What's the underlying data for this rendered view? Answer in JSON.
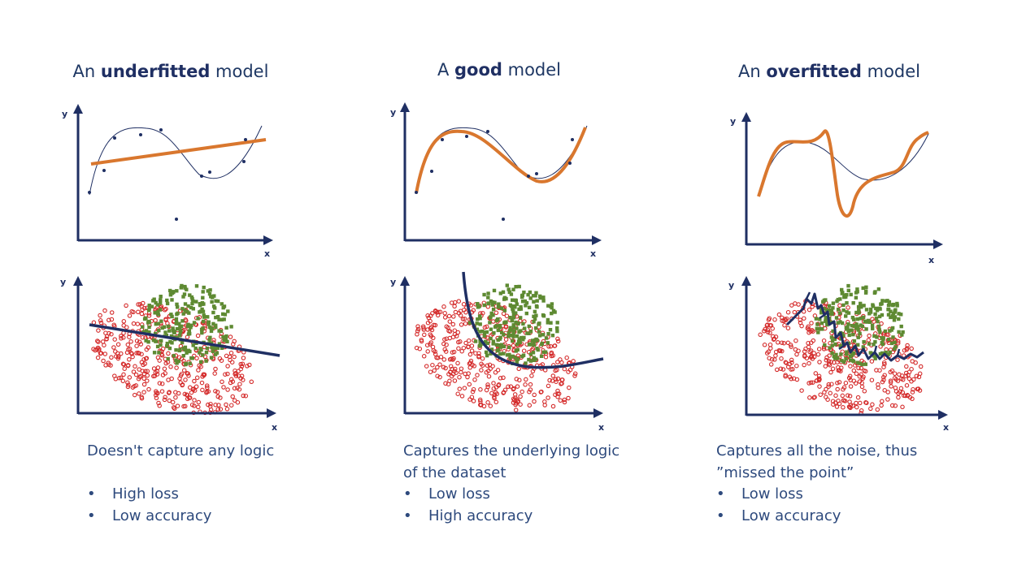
{
  "panels": [
    {
      "title_pre": "An ",
      "title_bold": "underfitted",
      "title_post": " model",
      "description_lines": [
        "Doesn't capture any logic"
      ],
      "bullets": [
        "High loss",
        "Low accuracy"
      ],
      "axis_x": "x",
      "axis_y": "y"
    },
    {
      "title_pre": "A ",
      "title_bold": "good",
      "title_post": " model",
      "description_lines": [
        "Captures the underlying logic",
        "of the dataset"
      ],
      "bullets": [
        "Low loss",
        "High accuracy"
      ],
      "axis_x": "x",
      "axis_y": "y"
    },
    {
      "title_pre": "An ",
      "title_bold": "overfitted",
      "title_post": " model",
      "description_lines": [
        "Captures all the noise, thus",
        "”missed the point”"
      ],
      "bullets": [
        "Low loss",
        "Low accuracy"
      ],
      "axis_x": "x",
      "axis_y": "y"
    }
  ],
  "colors": {
    "axis": "#1f2f63",
    "fit_curve": "#d9772e",
    "class_a": "#d42a2a",
    "class_b": "#5e8a32",
    "boundary": "#1f2f63"
  }
}
